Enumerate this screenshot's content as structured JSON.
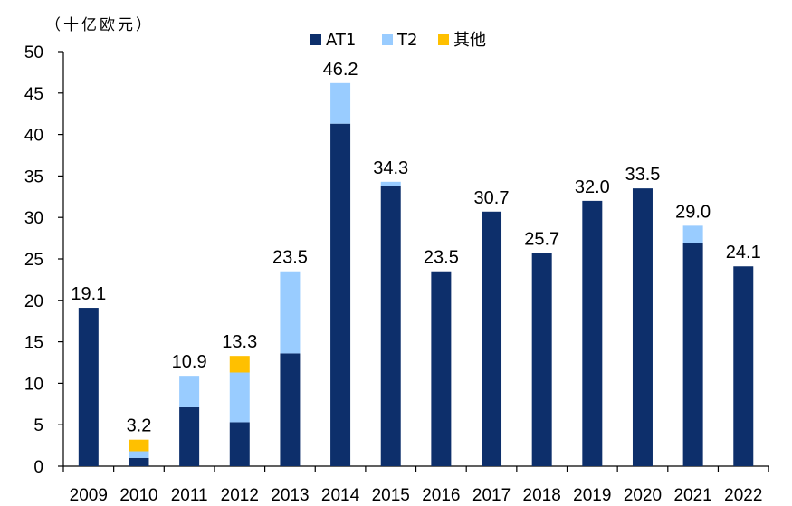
{
  "chart_data": {
    "type": "bar",
    "stacked": true,
    "unit_label": "（十亿欧元）",
    "categories": [
      "2009",
      "2010",
      "2011",
      "2012",
      "2013",
      "2014",
      "2015",
      "2016",
      "2017",
      "2018",
      "2019",
      "2020",
      "2021",
      "2022"
    ],
    "series": [
      {
        "name": "AT1",
        "color": "#0d2f6b",
        "values": [
          19.1,
          1.0,
          7.1,
          5.3,
          13.6,
          41.3,
          33.8,
          23.5,
          30.7,
          25.7,
          32.0,
          33.5,
          26.9,
          24.1
        ]
      },
      {
        "name": "T2",
        "color": "#99ccff",
        "values": [
          0,
          0.8,
          3.8,
          6.0,
          9.9,
          4.9,
          0.5,
          0,
          0,
          0,
          0,
          0,
          2.1,
          0
        ]
      },
      {
        "name": "其他",
        "color": "#ffc000",
        "values": [
          0,
          1.4,
          0,
          2.0,
          0,
          0,
          0,
          0,
          0,
          0,
          0,
          0,
          0,
          0
        ]
      }
    ],
    "totals": [
      "19.1",
      "3.2",
      "10.9",
      "13.3",
      "23.5",
      "46.2",
      "34.3",
      "23.5",
      "30.7",
      "25.7",
      "32.0",
      "33.5",
      "29.0",
      "24.1"
    ],
    "ylim": [
      0,
      50
    ],
    "yticks": [
      "0",
      "5",
      "10",
      "15",
      "20",
      "25",
      "30",
      "35",
      "40",
      "45",
      "50"
    ],
    "legend_position": "top",
    "grid": false
  }
}
